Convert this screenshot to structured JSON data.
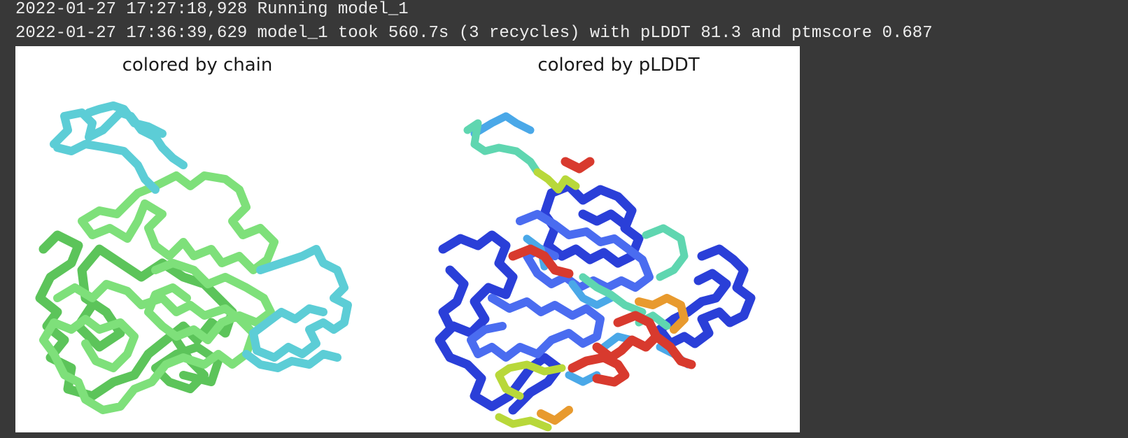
{
  "log": {
    "line1": "2022-01-27 17:27:18,928 Running model_1",
    "line2": "2022-01-27 17:36:39,629 model_1 took 560.7s (3 recycles) with pLDDT 81.3 and ptmscore 0.687"
  },
  "figure": {
    "panels": [
      {
        "title": "colored by chain"
      },
      {
        "title": "colored by pLDDT"
      }
    ]
  },
  "colors": {
    "background": "#383838",
    "log_text": "#ececec",
    "figure_bg": "#ffffff",
    "chain_a": "#7ee07a",
    "chain_a_dark": "#5cc45a",
    "chain_b": "#5ccdd6",
    "plddt_very_high": "#2a3fd8",
    "plddt_high": "#4aa8e8",
    "plddt_mid": "#5fd6b0",
    "plddt_low": "#d8d83a",
    "plddt_very_low": "#d83a2e"
  }
}
